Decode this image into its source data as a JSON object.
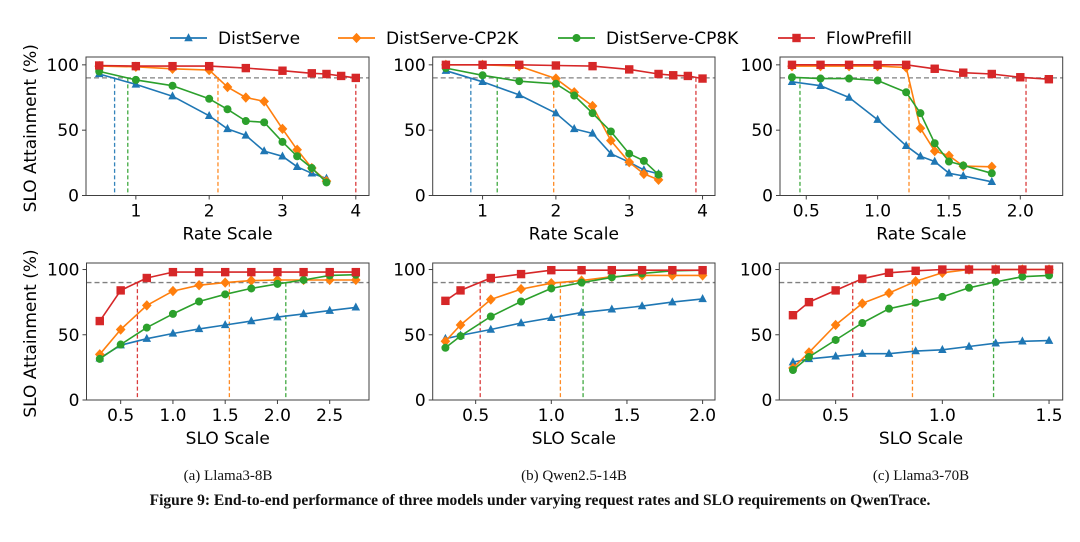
{
  "figure": {
    "title": "Figure 9: End-to-end performance of three models under varying request rates and SLO requirements on QwenTrace.",
    "captions": [
      "(a) Llama3-8B",
      "(b) Qwen2.5-14B",
      "(c) Llama3-70B"
    ]
  },
  "legend": {
    "placement": "top-center",
    "entries": [
      {
        "name": "DistServe",
        "color": "#1f77b4",
        "marker": "triangle"
      },
      {
        "name": "DistServe-CP2K",
        "color": "#ff7f0e",
        "marker": "diamond"
      },
      {
        "name": "DistServe-CP8K",
        "color": "#2ca02c",
        "marker": "circle"
      },
      {
        "name": "FlowPrefill",
        "color": "#d62728",
        "marker": "square"
      }
    ]
  },
  "chart_data": [
    {
      "type": "line",
      "panel": "(a) Llama3-8B rate",
      "xlabel": "Rate Scale",
      "ylabel": "SLO Attainment (%)",
      "xlim": [
        0.32,
        4.18
      ],
      "ylim": [
        0,
        106
      ],
      "xticks": [
        1,
        2,
        3,
        4
      ],
      "xtick_labels": [
        "1",
        "2",
        "3",
        "4"
      ],
      "yticks": [
        0,
        50,
        100
      ],
      "ytick_labels": [
        "0",
        "50",
        "100"
      ],
      "threshold": 90,
      "grid": false,
      "series": [
        {
          "name": "DistServe",
          "x": [
            0.5,
            1,
            1.5,
            2,
            2.25,
            2.5,
            2.75,
            3,
            3.2,
            3.4,
            3.6
          ],
          "y": [
            93,
            85,
            76,
            61,
            51,
            46,
            34,
            30,
            22,
            17,
            13
          ],
          "threshold_x": 0.71
        },
        {
          "name": "DistServe-CP2K",
          "x": [
            0.5,
            1,
            1.5,
            2,
            2.25,
            2.5,
            2.75,
            3,
            3.2,
            3.4,
            3.6
          ],
          "y": [
            99,
            98.5,
            97,
            96,
            83,
            75,
            72,
            51,
            35,
            21,
            11
          ],
          "threshold_x": 2.12
        },
        {
          "name": "DistServe-CP8K",
          "x": [
            0.5,
            1,
            1.5,
            2,
            2.25,
            2.5,
            2.75,
            3,
            3.2,
            3.4,
            3.6
          ],
          "y": [
            95,
            88.5,
            84,
            74,
            66,
            57,
            56,
            41,
            30,
            21,
            10
          ],
          "threshold_x": 0.89
        },
        {
          "name": "FlowPrefill",
          "x": [
            0.5,
            1,
            1.5,
            2,
            2.5,
            3,
            3.4,
            3.6,
            3.8,
            4
          ],
          "y": [
            99.5,
            99,
            99,
            99,
            97.5,
            95.5,
            93.5,
            93,
            91.5,
            90
          ],
          "threshold_x": 4.0
        }
      ]
    },
    {
      "type": "line",
      "panel": "(b) Qwen2.5-14B rate",
      "xlabel": "Rate Scale",
      "ylabel": "",
      "xlim": [
        0.32,
        4.17
      ],
      "ylim": [
        0,
        106
      ],
      "xticks": [
        1,
        2,
        3,
        4
      ],
      "xtick_labels": [
        "1",
        "2",
        "3",
        "4"
      ],
      "yticks": [
        0,
        50,
        100
      ],
      "ytick_labels": [
        "0",
        "50",
        "100"
      ],
      "threshold": 90,
      "grid": false,
      "series": [
        {
          "name": "DistServe",
          "x": [
            0.5,
            1,
            1.5,
            2,
            2.25,
            2.5,
            2.75,
            3,
            3.2,
            3.4
          ],
          "y": [
            95.5,
            87,
            77,
            63,
            51,
            47.5,
            32,
            25.5,
            19.5,
            16.5
          ],
          "threshold_x": 0.84
        },
        {
          "name": "DistServe-CP2K",
          "x": [
            0.5,
            1,
            1.5,
            2,
            2.25,
            2.5,
            2.75,
            3,
            3.2,
            3.4
          ],
          "y": [
            100,
            100,
            99,
            89.5,
            79,
            68.5,
            42,
            25.5,
            16.5,
            12
          ],
          "threshold_x": 1.97
        },
        {
          "name": "DistServe-CP8K",
          "x": [
            0.5,
            1,
            1.5,
            2,
            2.25,
            2.5,
            2.75,
            3,
            3.2,
            3.4
          ],
          "y": [
            97.5,
            92,
            87.5,
            85.5,
            76.5,
            63,
            49,
            32,
            26.5,
            16
          ],
          "threshold_x": 1.2
        },
        {
          "name": "FlowPrefill",
          "x": [
            0.5,
            1,
            1.5,
            2,
            2.5,
            3,
            3.4,
            3.6,
            3.8,
            4
          ],
          "y": [
            100,
            100,
            100,
            99.5,
            99,
            96.5,
            93,
            92,
            91.5,
            89.5
          ],
          "threshold_x": 3.91
        }
      ]
    },
    {
      "type": "line",
      "panel": "(c) Llama3-70B rate",
      "xlabel": "Rate Scale",
      "ylabel": "",
      "xlim": [
        0.316,
        2.297
      ],
      "ylim": [
        0,
        106
      ],
      "xticks": [
        0.5,
        1.0,
        1.5,
        2.0
      ],
      "xtick_labels": [
        "0.5",
        "1.0",
        "1.5",
        "2.0"
      ],
      "yticks": [
        0,
        50,
        100
      ],
      "ytick_labels": [
        "0",
        "50",
        "100"
      ],
      "threshold": 90,
      "grid": false,
      "series": [
        {
          "name": "DistServe",
          "x": [
            0.4,
            0.6,
            0.8,
            1.0,
            1.2,
            1.3,
            1.4,
            1.5,
            1.6,
            1.8
          ],
          "y": [
            87,
            84,
            75,
            58,
            38,
            30,
            26,
            17,
            15,
            10.5
          ],
          "threshold_x": null
        },
        {
          "name": "DistServe-CP2K",
          "x": [
            0.4,
            0.6,
            0.8,
            1.0,
            1.2,
            1.3,
            1.4,
            1.5,
            1.6,
            1.8
          ],
          "y": [
            99,
            99,
            99,
            99,
            98,
            51.5,
            34,
            30.5,
            22.5,
            22
          ],
          "threshold_x": 1.22
        },
        {
          "name": "DistServe-CP8K",
          "x": [
            0.4,
            0.6,
            0.8,
            1.0,
            1.2,
            1.3,
            1.4,
            1.5,
            1.6,
            1.8
          ],
          "y": [
            90.5,
            89.5,
            89.5,
            88,
            79,
            63,
            40,
            26,
            23,
            17
          ],
          "threshold_x": 0.456
        },
        {
          "name": "FlowPrefill",
          "x": [
            0.4,
            0.6,
            0.8,
            1.0,
            1.2,
            1.4,
            1.6,
            1.8,
            2.0,
            2.2
          ],
          "y": [
            100,
            100,
            100,
            100,
            100,
            97,
            94,
            93,
            90.5,
            89
          ],
          "threshold_x": 2.04
        }
      ]
    },
    {
      "type": "line",
      "panel": "(a) Llama3-8B SLO",
      "xlabel": "SLO Scale",
      "ylabel": "SLO Attainment (%)",
      "xlim": [
        0.173,
        2.876
      ],
      "ylim": [
        0,
        105
      ],
      "xticks": [
        0.5,
        1.0,
        1.5,
        2.0,
        2.5
      ],
      "xtick_labels": [
        "0.5",
        "1.0",
        "1.5",
        "2.0",
        "2.5"
      ],
      "yticks": [
        0,
        50,
        100
      ],
      "ytick_labels": [
        "0",
        "50",
        "100"
      ],
      "threshold": 90,
      "grid": false,
      "series": [
        {
          "name": "DistServe",
          "x": [
            0.3,
            0.5,
            0.75,
            1.0,
            1.25,
            1.5,
            1.75,
            2.0,
            2.25,
            2.5,
            2.75
          ],
          "y": [
            32,
            42,
            47,
            51,
            54.5,
            57.5,
            60.5,
            63.5,
            66,
            68.5,
            71
          ],
          "threshold_x": null
        },
        {
          "name": "DistServe-CP2K",
          "x": [
            0.3,
            0.5,
            0.75,
            1.0,
            1.25,
            1.5,
            1.75,
            2.0,
            2.25,
            2.5,
            2.75
          ],
          "y": [
            35,
            54,
            72.5,
            83.5,
            88,
            90,
            91.5,
            92,
            92,
            92,
            92
          ],
          "threshold_x": 1.54
        },
        {
          "name": "DistServe-CP8K",
          "x": [
            0.3,
            0.5,
            0.75,
            1.0,
            1.25,
            1.5,
            1.75,
            2.0,
            2.25,
            2.5,
            2.75
          ],
          "y": [
            31.5,
            42.5,
            55.5,
            66,
            75.5,
            81,
            85.5,
            89,
            92,
            95.5,
            96
          ],
          "threshold_x": 2.08
        },
        {
          "name": "FlowPrefill",
          "x": [
            0.3,
            0.5,
            0.75,
            1.0,
            1.25,
            1.5,
            1.75,
            2.0,
            2.25,
            2.5,
            2.75
          ],
          "y": [
            60.5,
            84,
            93.5,
            98,
            98,
            98,
            98,
            98,
            98,
            98,
            98
          ],
          "threshold_x": 0.66
        }
      ]
    },
    {
      "type": "line",
      "panel": "(b) Qwen2.5-14B SLO",
      "xlabel": "SLO Scale",
      "ylabel": "",
      "xlim": [
        0.216,
        2.082
      ],
      "ylim": [
        0,
        105
      ],
      "xticks": [
        0.5,
        1.0,
        1.5,
        2.0
      ],
      "xtick_labels": [
        "0.5",
        "1.0",
        "1.5",
        "2.0"
      ],
      "yticks": [
        0,
        50,
        100
      ],
      "ytick_labels": [
        "0",
        "50",
        "100"
      ],
      "threshold": 90,
      "grid": false,
      "series": [
        {
          "name": "DistServe",
          "x": [
            0.3,
            0.4,
            0.6,
            0.8,
            1.0,
            1.2,
            1.4,
            1.6,
            1.8,
            2.0
          ],
          "y": [
            47,
            49.5,
            54,
            59,
            63,
            67,
            69.5,
            72,
            75,
            77.5
          ],
          "threshold_x": null
        },
        {
          "name": "DistServe-CP2K",
          "x": [
            0.3,
            0.4,
            0.6,
            0.8,
            1.0,
            1.2,
            1.4,
            1.6,
            1.8,
            2.0
          ],
          "y": [
            45,
            57.5,
            77,
            85,
            89.5,
            91.5,
            94.5,
            95.5,
            95.5,
            95.5
          ],
          "threshold_x": 1.06
        },
        {
          "name": "DistServe-CP8K",
          "x": [
            0.3,
            0.4,
            0.6,
            0.8,
            1.0,
            1.2,
            1.4,
            1.6,
            1.8,
            2.0
          ],
          "y": [
            40,
            49,
            64,
            75.5,
            85.5,
            90,
            94,
            97,
            99,
            99.5
          ],
          "threshold_x": 1.21
        },
        {
          "name": "FlowPrefill",
          "x": [
            0.3,
            0.4,
            0.6,
            0.8,
            1.0,
            1.2,
            1.4,
            1.6,
            1.8,
            2.0
          ],
          "y": [
            76,
            84,
            93.5,
            96.5,
            99.5,
            99.5,
            99.5,
            99.5,
            99.5,
            99.5
          ],
          "threshold_x": 0.53
        }
      ]
    },
    {
      "type": "line",
      "panel": "(c) Llama3-70B SLO",
      "xlabel": "SLO Scale",
      "ylabel": "",
      "xlim": [
        0.236,
        1.564
      ],
      "ylim": [
        0,
        105
      ],
      "xticks": [
        0.5,
        1.0,
        1.5
      ],
      "xtick_labels": [
        "0.5",
        "1.0",
        "1.5"
      ],
      "yticks": [
        0,
        50,
        100
      ],
      "ytick_labels": [
        "0",
        "50",
        "100"
      ],
      "threshold": 90,
      "grid": false,
      "series": [
        {
          "name": "DistServe",
          "x": [
            0.3,
            0.375,
            0.5,
            0.625,
            0.75,
            0.875,
            1.0,
            1.125,
            1.25,
            1.375,
            1.5
          ],
          "y": [
            29,
            31.5,
            33.5,
            35.5,
            35.5,
            37.5,
            38.5,
            41,
            43.5,
            45,
            45.5
          ],
          "threshold_x": null
        },
        {
          "name": "DistServe-CP2K",
          "x": [
            0.3,
            0.375,
            0.5,
            0.625,
            0.75,
            0.875,
            1.0,
            1.125,
            1.25,
            1.375,
            1.5
          ],
          "y": [
            24.5,
            36.5,
            57.5,
            74,
            82,
            91,
            97.5,
            100,
            100,
            100,
            100
          ],
          "threshold_x": 0.86
        },
        {
          "name": "DistServe-CP8K",
          "x": [
            0.3,
            0.375,
            0.5,
            0.625,
            0.75,
            0.875,
            1.0,
            1.125,
            1.25,
            1.375,
            1.5
          ],
          "y": [
            23,
            33,
            46,
            59,
            70,
            74.5,
            79,
            86,
            90.5,
            94.5,
            95.5
          ],
          "threshold_x": 1.24
        },
        {
          "name": "FlowPrefill",
          "x": [
            0.3,
            0.375,
            0.5,
            0.625,
            0.75,
            0.875,
            1.0,
            1.125,
            1.25,
            1.375,
            1.5
          ],
          "y": [
            65,
            75,
            84,
            93,
            97.5,
            99,
            100,
            100,
            100,
            100,
            100
          ],
          "threshold_x": 0.58
        }
      ]
    }
  ]
}
